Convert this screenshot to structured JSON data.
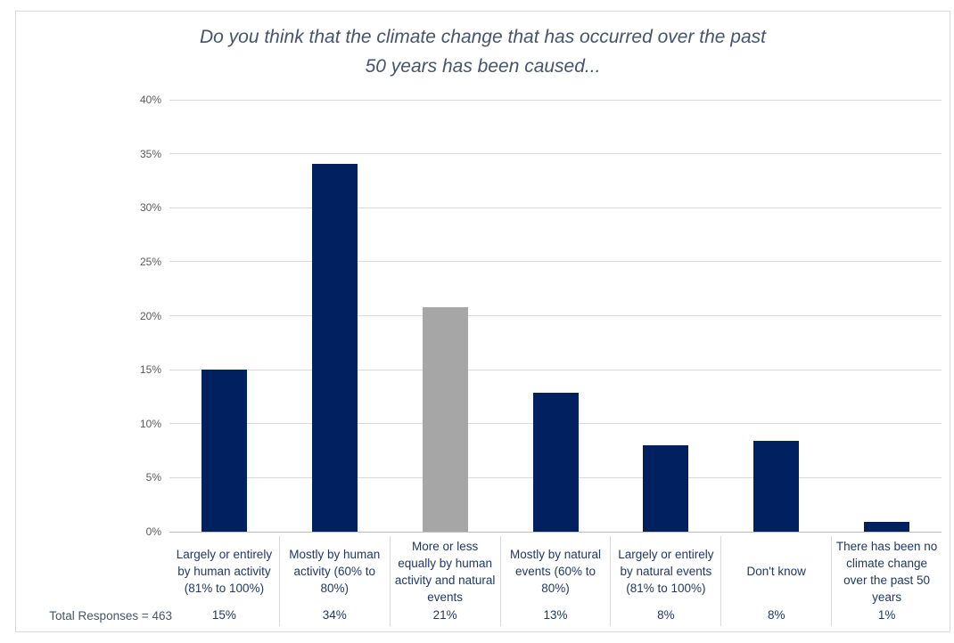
{
  "chart_data": {
    "type": "bar",
    "title": "Do you think that the climate change that has occurred over the past 50 years has been caused...",
    "title_lines": [
      "Do you think that the climate change that has occurred over the past",
      "50 years has been caused..."
    ],
    "categories": [
      "Largely or entirely by human activity (81% to 100%)",
      "Mostly by human activity (60% to 80%)",
      "More or less equally by human activity and natural events",
      "Mostly by natural events (60% to 80%)",
      "Largely or entirely by natural events (81% to 100%)",
      "Don't know",
      "There has been no climate change over the past 50 years"
    ],
    "values": [
      15.0,
      34.1,
      20.8,
      12.9,
      8.0,
      8.4,
      0.9
    ],
    "value_labels": [
      "15%",
      "34%",
      "21%",
      "13%",
      "8%",
      "8%",
      "1%"
    ],
    "bar_colors": [
      "#002060",
      "#002060",
      "#A6A6A6",
      "#002060",
      "#002060",
      "#002060",
      "#002060"
    ],
    "yticks": [
      "0%",
      "5%",
      "10%",
      "15%",
      "20%",
      "25%",
      "30%",
      "35%",
      "40%"
    ],
    "ylim": [
      0,
      40
    ],
    "xlabel": "",
    "ylabel": "",
    "grid": true,
    "legend": false,
    "footer": "Total Responses = 463"
  },
  "colors": {
    "bar_navy": "#002060",
    "bar_gray": "#A6A6A6",
    "gridline": "#D9D9D9",
    "axis_line": "#BFBFBF",
    "title_text": "#44546A",
    "ytick_text": "#595959",
    "category_text": "#1F3864",
    "footer_text": "#44546A",
    "border": "#D9D9D9",
    "background": "#FFFFFF"
  }
}
